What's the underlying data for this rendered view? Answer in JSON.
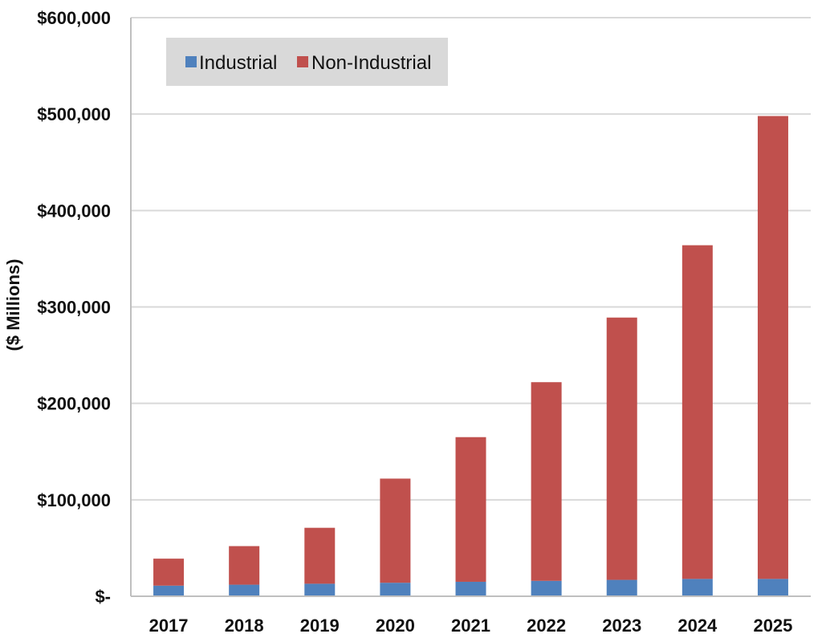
{
  "chart_data": {
    "type": "bar",
    "stacked": true,
    "title": "",
    "xlabel": "",
    "ylabel": "($ Millions)",
    "categories": [
      "2017",
      "2018",
      "2019",
      "2020",
      "2021",
      "2022",
      "2023",
      "2024",
      "2025"
    ],
    "series": [
      {
        "name": "Industrial",
        "color": "#4f81bd",
        "values": [
          11000,
          12000,
          13000,
          14000,
          15000,
          16000,
          17000,
          18000,
          18000
        ]
      },
      {
        "name": "Non-Industrial",
        "color": "#c0504d",
        "values": [
          28000,
          40000,
          58000,
          108000,
          150000,
          206000,
          272000,
          346000,
          480000
        ]
      }
    ],
    "ylim": [
      0,
      600000
    ],
    "yticks": [
      0,
      100000,
      200000,
      300000,
      400000,
      500000,
      600000
    ],
    "ytick_labels": [
      "$-",
      "$100,000",
      "$200,000",
      "$300,000",
      "$400,000",
      "$500,000",
      "$600,000"
    ],
    "grid": true,
    "legend_position": "top-left"
  }
}
